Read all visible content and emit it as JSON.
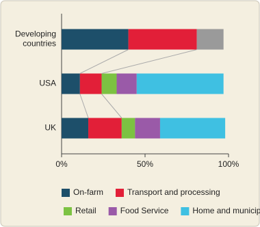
{
  "chart_data": {
    "type": "stacked-bar",
    "orientation": "horizontal",
    "categories": [
      "Developing countries",
      "USA",
      "UK"
    ],
    "series": [
      {
        "name": "On-farm",
        "color": "#1d4f6a",
        "values": [
          40,
          11,
          16
        ]
      },
      {
        "name": "Transport and processing",
        "color": "#e21f38",
        "values": [
          41,
          13,
          20
        ]
      },
      {
        "name": "Retail",
        "color": "#7cc242",
        "values": [
          null,
          9,
          8
        ]
      },
      {
        "name": "Food Service",
        "color": "#9a5aa8",
        "values": [
          null,
          12,
          15
        ]
      },
      {
        "name": "Home and municipal",
        "color": "#3fc0e2",
        "values": [
          null,
          52,
          39
        ]
      },
      {
        "name": null,
        "color": "#9a9a9a",
        "values": [
          16,
          null,
          null
        ]
      }
    ],
    "xlim": [
      0,
      100
    ],
    "xticks": [
      {
        "value": 0,
        "label": "0%"
      },
      {
        "value": 50,
        "label": "50%"
      },
      {
        "value": 100,
        "label": "100%"
      }
    ]
  }
}
